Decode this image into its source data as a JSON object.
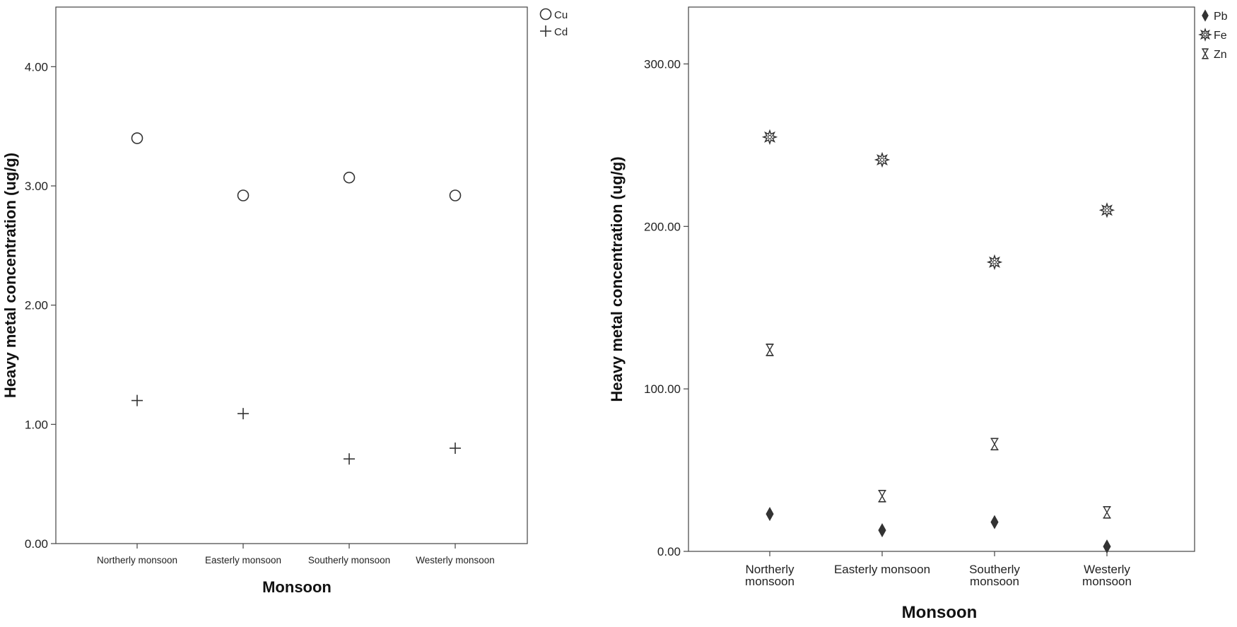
{
  "chart_data": [
    {
      "type": "scatter",
      "title": "",
      "xlabel": "Monsoon",
      "ylabel": "Heavy metal concentration (ug/g)",
      "ylim": [
        0,
        4.5
      ],
      "yticks": [
        0,
        1,
        2,
        3,
        4
      ],
      "ytick_labels": [
        "0.00",
        "1.00",
        "2.00",
        "3.00",
        "4.00"
      ],
      "categories": [
        "Northerly monsoon",
        "Easterly monsoon",
        "Southerly monsoon",
        "Westerly monsoon"
      ],
      "grid": false,
      "legend": "top-right",
      "series": [
        {
          "name": "Cu",
          "marker": "circle",
          "values": [
            3.4,
            2.92,
            3.07,
            2.92
          ]
        },
        {
          "name": "Cd",
          "marker": "plus",
          "values": [
            1.2,
            1.09,
            0.71,
            0.8
          ]
        }
      ]
    },
    {
      "type": "scatter",
      "title": "",
      "xlabel": "Monsoon",
      "ylabel": "Heavy metal concentration (ug/g)",
      "ylim": [
        0,
        335
      ],
      "yticks": [
        0,
        100,
        200,
        300
      ],
      "ytick_labels": [
        "0.00",
        "100.00",
        "200.00",
        "300.00"
      ],
      "categories": [
        [
          "Northerly",
          "monsoon"
        ],
        [
          "Easterly monsoon"
        ],
        [
          "Southerly",
          "monsoon"
        ],
        [
          "Westerly",
          "monsoon"
        ]
      ],
      "grid": false,
      "legend": "top-right",
      "series": [
        {
          "name": "Pb",
          "marker": "diamond",
          "values": [
            23,
            13,
            18,
            3
          ]
        },
        {
          "name": "Fe",
          "marker": "star",
          "values": [
            255,
            241,
            178,
            210
          ]
        },
        {
          "name": "Zn",
          "marker": "hourglass",
          "values": [
            124,
            34,
            66,
            24
          ]
        }
      ]
    }
  ]
}
